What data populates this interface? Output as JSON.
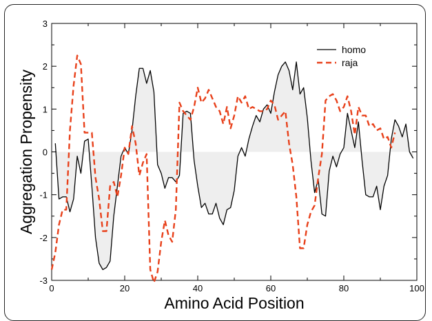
{
  "chart_data": {
    "type": "line",
    "title": "",
    "xlabel": "Amino Acid Position",
    "ylabel": "Aggregation Propensity",
    "xlim": [
      0,
      100
    ],
    "ylim": [
      -3,
      3
    ],
    "xticks": [
      0,
      20,
      40,
      60,
      80,
      100
    ],
    "yticks": [
      -3,
      -2,
      -1,
      0,
      1,
      2,
      3
    ],
    "grid": false,
    "legend_position": "top-right",
    "series": [
      {
        "name": "homo",
        "color": "#000000",
        "style": "solid",
        "shaded_to_zero": true,
        "x": [
          1,
          2,
          3,
          4,
          5,
          6,
          7,
          8,
          9,
          10,
          11,
          12,
          13,
          14,
          15,
          16,
          17,
          18,
          19,
          20,
          21,
          22,
          23,
          24,
          25,
          26,
          27,
          28,
          29,
          30,
          31,
          32,
          33,
          34,
          35,
          36,
          37,
          38,
          39,
          40,
          41,
          42,
          43,
          44,
          45,
          46,
          47,
          48,
          49,
          50,
          51,
          52,
          53,
          54,
          55,
          56,
          57,
          58,
          59,
          60,
          61,
          62,
          63,
          64,
          65,
          66,
          67,
          68,
          69,
          70,
          71,
          72,
          73,
          74,
          75,
          76,
          77,
          78,
          79,
          80,
          81,
          82,
          83,
          84,
          85,
          86,
          87,
          88,
          89,
          90,
          91,
          92,
          93,
          94,
          95,
          96,
          97,
          98,
          99
        ],
        "y": [
          0.2,
          -1.1,
          -1.05,
          -1.05,
          -1.4,
          -1.1,
          -0.1,
          -0.5,
          0.25,
          0.3,
          -0.8,
          -2.0,
          -2.6,
          -2.75,
          -2.7,
          -2.55,
          -1.5,
          -0.8,
          -0.1,
          0.1,
          -0.05,
          0.5,
          1.3,
          1.95,
          1.95,
          1.6,
          1.9,
          1.4,
          -0.3,
          -0.5,
          -0.85,
          -0.6,
          -0.6,
          -0.7,
          -0.55,
          0.9,
          0.95,
          0.9,
          -0.2,
          -0.8,
          -1.3,
          -1.2,
          -1.45,
          -1.45,
          -1.2,
          -1.55,
          -1.7,
          -1.35,
          -1.3,
          -0.9,
          -0.1,
          0.1,
          -0.1,
          0.3,
          0.6,
          0.85,
          0.7,
          1.0,
          1.1,
          0.9,
          1.4,
          1.8,
          2.0,
          2.1,
          1.9,
          1.45,
          2.1,
          1.35,
          1.5,
          0.8,
          -0.2,
          -0.95,
          -0.65,
          -1.45,
          -1.5,
          -0.45,
          -0.1,
          -0.35,
          -0.05,
          0.1,
          0.9,
          0.5,
          0.1,
          0.7,
          -0.2,
          -1.0,
          -1.05,
          -1.05,
          -0.8,
          -1.35,
          -0.8,
          -0.55,
          0.3,
          0.75,
          0.6,
          0.35,
          0.65,
          0.0,
          -0.15
        ]
      },
      {
        "name": "raja",
        "color": "#e8401a",
        "style": "dashed",
        "shaded_to_zero": false,
        "x": [
          0,
          1,
          2,
          3,
          4,
          5,
          6,
          7,
          8,
          9,
          10,
          11,
          12,
          13,
          14,
          15,
          16,
          17,
          18,
          19,
          20,
          21,
          22,
          23,
          24,
          25,
          26,
          27,
          28,
          29,
          30,
          31,
          32,
          33,
          34,
          35,
          36,
          37,
          38,
          39,
          40,
          41,
          42,
          43,
          44,
          45,
          46,
          47,
          48,
          49,
          50,
          51,
          52,
          53,
          54,
          55,
          56,
          57,
          58,
          59,
          60,
          61,
          62,
          63,
          64,
          65,
          66,
          67,
          68,
          69,
          70,
          71,
          72,
          73,
          74,
          75,
          76,
          77,
          78,
          79,
          80,
          81,
          82,
          83,
          84,
          85,
          86,
          87,
          88,
          89,
          90,
          91,
          92,
          93,
          94
        ],
        "y": [
          -2.75,
          -2.35,
          -1.7,
          -1.35,
          -1.35,
          0.5,
          1.55,
          2.25,
          2.05,
          0.45,
          0.45,
          0.45,
          -0.6,
          -1.1,
          -1.85,
          -1.85,
          -0.8,
          -0.7,
          -1.05,
          -0.55,
          0.1,
          -0.05,
          0.6,
          0.2,
          -0.55,
          -0.25,
          -0.05,
          -2.75,
          -3.05,
          -2.8,
          -2.1,
          -1.6,
          -1.95,
          -2.1,
          -1.35,
          1.15,
          0.95,
          0.85,
          0.75,
          1.05,
          1.5,
          1.15,
          1.25,
          1.45,
          1.25,
          1.05,
          0.95,
          0.65,
          1.05,
          0.55,
          0.85,
          1.3,
          1.15,
          1.3,
          1.0,
          1.05,
          1.0,
          0.95,
          0.95,
          1.0,
          1.2,
          1.1,
          0.75,
          0.85,
          0.95,
          0.2,
          -0.3,
          -1.05,
          -2.25,
          -2.25,
          -1.7,
          -1.4,
          -1.25,
          -0.6,
          -0.05,
          1.2,
          1.3,
          1.35,
          1.2,
          0.95,
          1.05,
          1.3,
          0.95,
          0.4,
          1.05,
          0.85,
          0.85,
          0.6,
          0.65,
          0.5,
          0.55,
          0.3,
          0.35,
          0.1,
          0.45
        ]
      }
    ]
  }
}
